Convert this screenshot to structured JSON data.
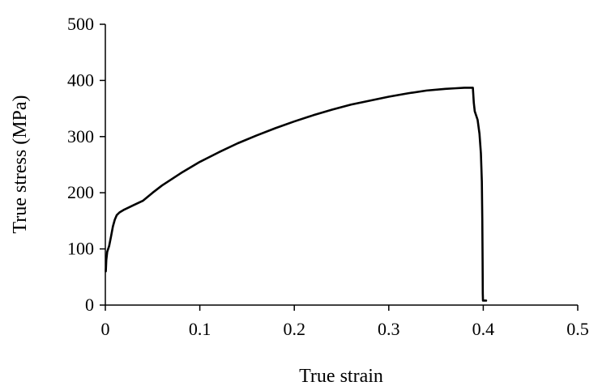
{
  "chart_data": {
    "type": "line",
    "title": "",
    "xlabel": "True strain",
    "ylabel": "True stress (MPa)",
    "xlim": [
      0,
      0.5
    ],
    "ylim": [
      0,
      500
    ],
    "xticks": [
      0,
      0.1,
      0.2,
      0.3,
      0.4,
      0.5
    ],
    "yticks": [
      0,
      100,
      200,
      300,
      400,
      500
    ],
    "x_tick_labels": [
      "0",
      "0.1",
      "0.2",
      "0.3",
      "0.4",
      "0.5"
    ],
    "y_tick_labels": [
      "0",
      "100",
      "200",
      "300",
      "400",
      "500"
    ],
    "grid": false,
    "legend": "none",
    "line_color": "#000000",
    "series": [
      {
        "points": [
          [
            0.0005,
            60
          ],
          [
            0.001,
            80
          ],
          [
            0.002,
            95
          ],
          [
            0.004,
            105
          ],
          [
            0.006,
            122
          ],
          [
            0.008,
            140
          ],
          [
            0.01,
            152
          ],
          [
            0.012,
            160
          ],
          [
            0.015,
            165
          ],
          [
            0.02,
            170
          ],
          [
            0.03,
            178
          ],
          [
            0.04,
            186
          ],
          [
            0.05,
            200
          ],
          [
            0.06,
            213
          ],
          [
            0.08,
            235
          ],
          [
            0.1,
            255
          ],
          [
            0.12,
            272
          ],
          [
            0.14,
            288
          ],
          [
            0.16,
            302
          ],
          [
            0.18,
            315
          ],
          [
            0.2,
            327
          ],
          [
            0.22,
            338
          ],
          [
            0.24,
            348
          ],
          [
            0.26,
            357
          ],
          [
            0.28,
            364
          ],
          [
            0.3,
            371
          ],
          [
            0.32,
            377
          ],
          [
            0.34,
            382
          ],
          [
            0.36,
            385
          ],
          [
            0.37,
            386
          ],
          [
            0.38,
            387
          ],
          [
            0.389,
            387
          ],
          [
            0.39,
            360
          ],
          [
            0.391,
            345
          ],
          [
            0.394,
            330
          ],
          [
            0.396,
            305
          ],
          [
            0.3975,
            270
          ],
          [
            0.3985,
            220
          ],
          [
            0.399,
            150
          ],
          [
            0.3993,
            80
          ],
          [
            0.3995,
            20
          ],
          [
            0.3997,
            8
          ],
          [
            0.401,
            8
          ],
          [
            0.403,
            8
          ]
        ]
      }
    ]
  }
}
